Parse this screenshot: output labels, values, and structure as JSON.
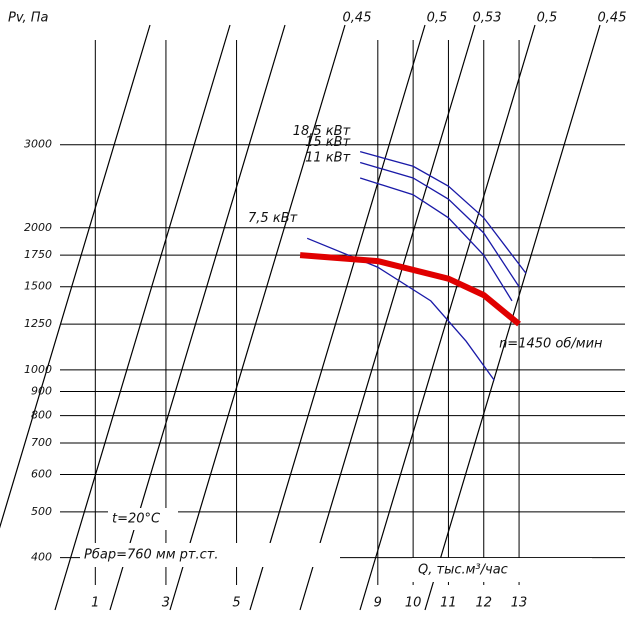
{
  "chart_data": {
    "type": "line",
    "y_label": "Pv, Па",
    "x_label": "Q, тыс.м³/час",
    "efficiency_labels": [
      "0,45",
      "0,5",
      "0,53",
      "0,5",
      "0,45"
    ],
    "annotations": [
      "t=20°C",
      "Рбар=760 мм рт.ст."
    ],
    "xlim": [
      0,
      16
    ],
    "xticks": [
      1,
      3,
      5,
      9,
      10,
      11,
      12,
      13
    ],
    "ylim": [
      350,
      5000
    ],
    "ylog": true,
    "yticks": [
      400,
      500,
      600,
      700,
      800,
      900,
      1000,
      1250,
      1500,
      1750,
      2000,
      3000
    ],
    "grid": true,
    "series": [
      {
        "name": "18,5 кВт",
        "color": "#1a1aa8",
        "x": [
          8.5,
          10,
          11,
          12,
          13.2
        ],
        "values": [
          2900,
          2700,
          2450,
          2100,
          1600
        ]
      },
      {
        "name": "15 кВт",
        "color": "#1a1aa8",
        "x": [
          8.5,
          10,
          11,
          12,
          13
        ],
        "values": [
          2750,
          2550,
          2300,
          1950,
          1500
        ]
      },
      {
        "name": "11 кВт",
        "color": "#1a1aa8",
        "x": [
          8.5,
          10,
          11,
          12,
          12.8
        ],
        "values": [
          2550,
          2350,
          2100,
          1750,
          1400
        ]
      },
      {
        "name": "7,5 кВт",
        "color": "#1a1aa8",
        "x": [
          7,
          9,
          10.5,
          11.5,
          12.3
        ],
        "values": [
          1900,
          1650,
          1400,
          1150,
          950
        ]
      },
      {
        "name": "n=1450 об/мин",
        "color": "#e00000",
        "x": [
          6.8,
          9,
          11,
          12,
          13
        ],
        "values": [
          1750,
          1700,
          1560,
          1440,
          1250
        ]
      }
    ]
  }
}
